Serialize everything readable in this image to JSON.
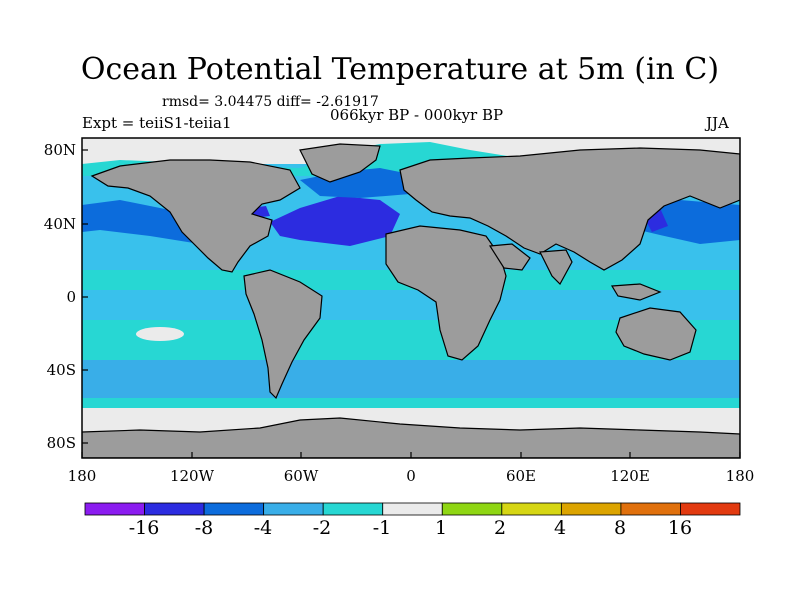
{
  "title": "Ocean Potential Temperature at 5m (in C)",
  "stats": "rmsd= 3.04475 diff= -2.61917",
  "experiment": "Expt = teiiS1-teiia1",
  "period": "066kyr BP - 000kyr BP",
  "season": "JJA",
  "map": {
    "projection": "equirectangular",
    "lon_range": [
      -180,
      180
    ],
    "lat_range": [
      -90,
      90
    ],
    "x_ticks": [
      "180",
      "120W",
      "60W",
      "0",
      "60E",
      "120E",
      "180"
    ],
    "y_ticks": [
      "80N",
      "40N",
      "0",
      "40S",
      "80S"
    ],
    "land_color": "#9c9c9c",
    "background_ocean_color": "#39c1ec"
  },
  "colorbar": {
    "colors": [
      "#8b1cf0",
      "#2c2ce0",
      "#0c6cdc",
      "#39aee8",
      "#27d7d3",
      "#ebebeb",
      "#8fd613",
      "#d6d614",
      "#dca400",
      "#e0700c",
      "#e23a10"
    ],
    "labels": [
      "-16",
      "-8",
      "-4",
      "-2",
      "-1",
      "1",
      "2",
      "4",
      "8",
      "16"
    ]
  }
}
